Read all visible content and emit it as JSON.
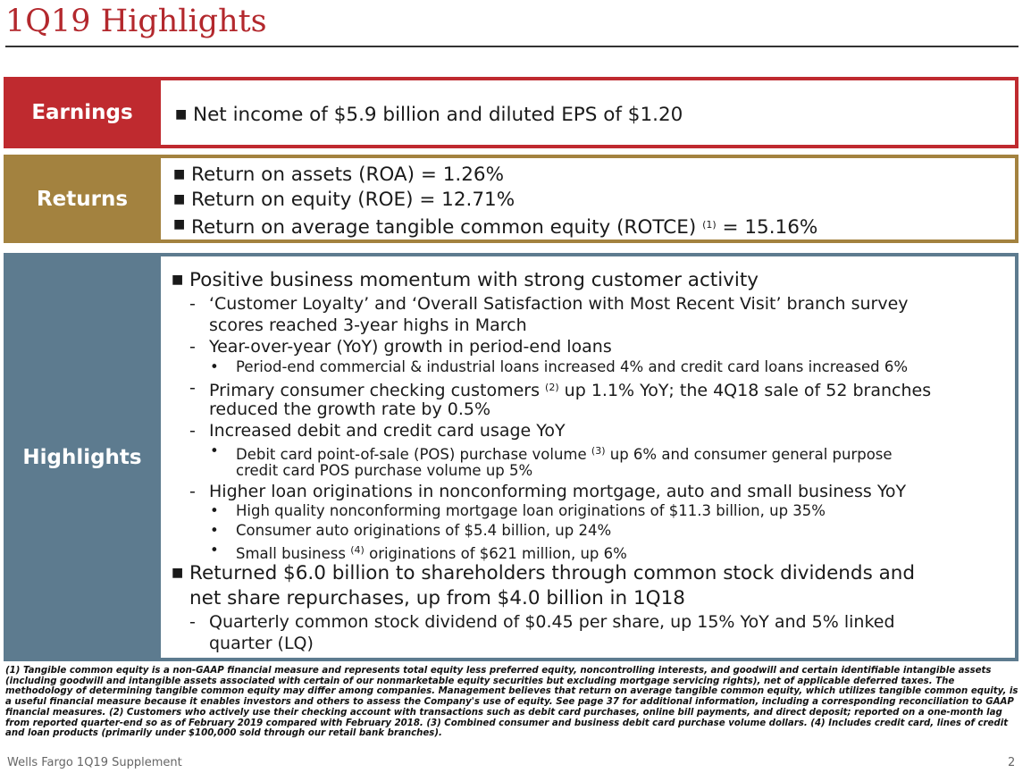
{
  "title": "1Q19 Highlights",
  "colors": {
    "earnings": "#bf2a2f",
    "returns": "#a3823f",
    "highlights": "#5d7b8f",
    "title": "#b3282d"
  },
  "earnings": {
    "label": "Earnings",
    "bullets": [
      "Net income of $5.9 billion and diluted EPS of $1.20"
    ]
  },
  "returns": {
    "label": "Returns",
    "bullets": [
      "Return on assets (ROA) = 1.26%",
      "Return on equity (ROE) = 12.71%",
      {
        "pre": "Return on average tangible common equity (ROTCE)",
        "sup": "(1)",
        "post": "= 15.16%"
      }
    ]
  },
  "highlights": {
    "label": "Highlights",
    "b1": "Positive business momentum with strong customer activity",
    "b1_1a": "‘Customer Loyalty’ and ‘Overall Satisfaction with Most Recent Visit’ branch survey",
    "b1_1b": "scores reached 3-year highs in March",
    "b1_2": "Year-over-year (YoY) growth in period-end loans",
    "b1_2_1": "Period-end commercial & industrial loans increased 4% and credit card loans increased 6%",
    "b1_3a_pre": "Primary consumer checking customers",
    "b1_3a_sup": "(2)",
    "b1_3a_post": "up 1.1% YoY; the 4Q18 sale of 52 branches",
    "b1_3b": "reduced the growth rate by 0.5%",
    "b1_4": "Increased debit and credit card usage YoY",
    "b1_4_1a_pre": "Debit card point-of-sale (POS) purchase volume",
    "b1_4_1a_sup": "(3)",
    "b1_4_1a_post": "up 6% and consumer general purpose",
    "b1_4_1b": "credit card POS purchase volume up 5%",
    "b1_5": "Higher loan originations in nonconforming mortgage, auto and small business YoY",
    "b1_5_1": "High quality nonconforming mortgage loan originations of $11.3 billion, up 35%",
    "b1_5_2": "Consumer auto originations of $5.4 billion, up 24%",
    "b1_5_3_pre": "Small business",
    "b1_5_3_sup": "(4)",
    "b1_5_3_post": "originations of $621 million, up 6%",
    "b2a": "Returned $6.0 billion to shareholders through common stock dividends and",
    "b2b": "net share repurchases, up from $4.0 billion in 1Q18",
    "b2_1a": "Quarterly common stock dividend of $0.45 per share, up 15% YoY and 5% linked",
    "b2_1b": "quarter (LQ)"
  },
  "footnote": "(1)  Tangible common equity is a non-GAAP financial measure and represents total equity less preferred equity, noncontrolling interests, and goodwill and certain identifiable intangible assets (including goodwill and intangible assets associated with certain of our nonmarketable equity securities but excluding mortgage servicing rights), net of applicable deferred taxes. The methodology of determining tangible common equity may differ among companies. Management believes that return on average tangible common equity, which utilizes tangible common equity, is a useful financial measure because it enables investors and others to assess the Company's use of equity. See page 37 for additional information, including a corresponding reconciliation to GAAP financial measures. (2) Customers who actively use their checking account with transactions such as debit card purchases, online bill payments, and direct deposit; reported on a one-month lag from reported quarter-end so as of February 2019 compared with February 2018. (3) Combined consumer and business debit card purchase volume dollars. (4) Includes credit card, lines of credit and loan products (primarily under $100,000 sold through our retail bank branches).",
  "page_footer": "Wells Fargo 1Q19 Supplement",
  "page_number": "2"
}
